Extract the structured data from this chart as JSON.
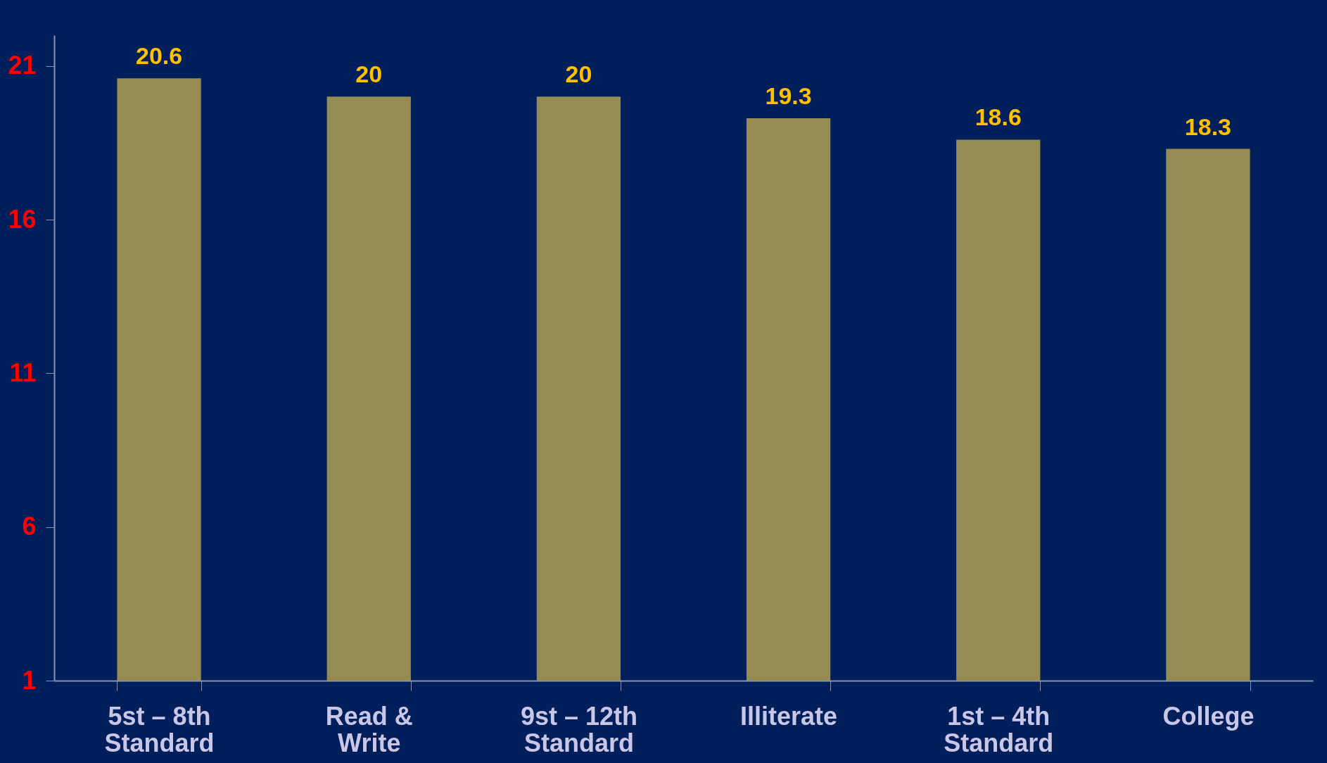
{
  "chart_data": {
    "type": "bar",
    "categories": [
      "5st – 8th\nStandard",
      "Read &\nWrite",
      "9st – 12th\nStandard",
      "Illiterate",
      "1st – 4th\nStandard",
      "College"
    ],
    "values": [
      20.6,
      20,
      20,
      19.3,
      18.6,
      18.3
    ],
    "color": "#958b53",
    "ylim": [
      1,
      22
    ],
    "yticks": [
      1,
      6,
      11,
      16,
      21
    ],
    "data_labels": true,
    "grid": false,
    "legend": false
  }
}
